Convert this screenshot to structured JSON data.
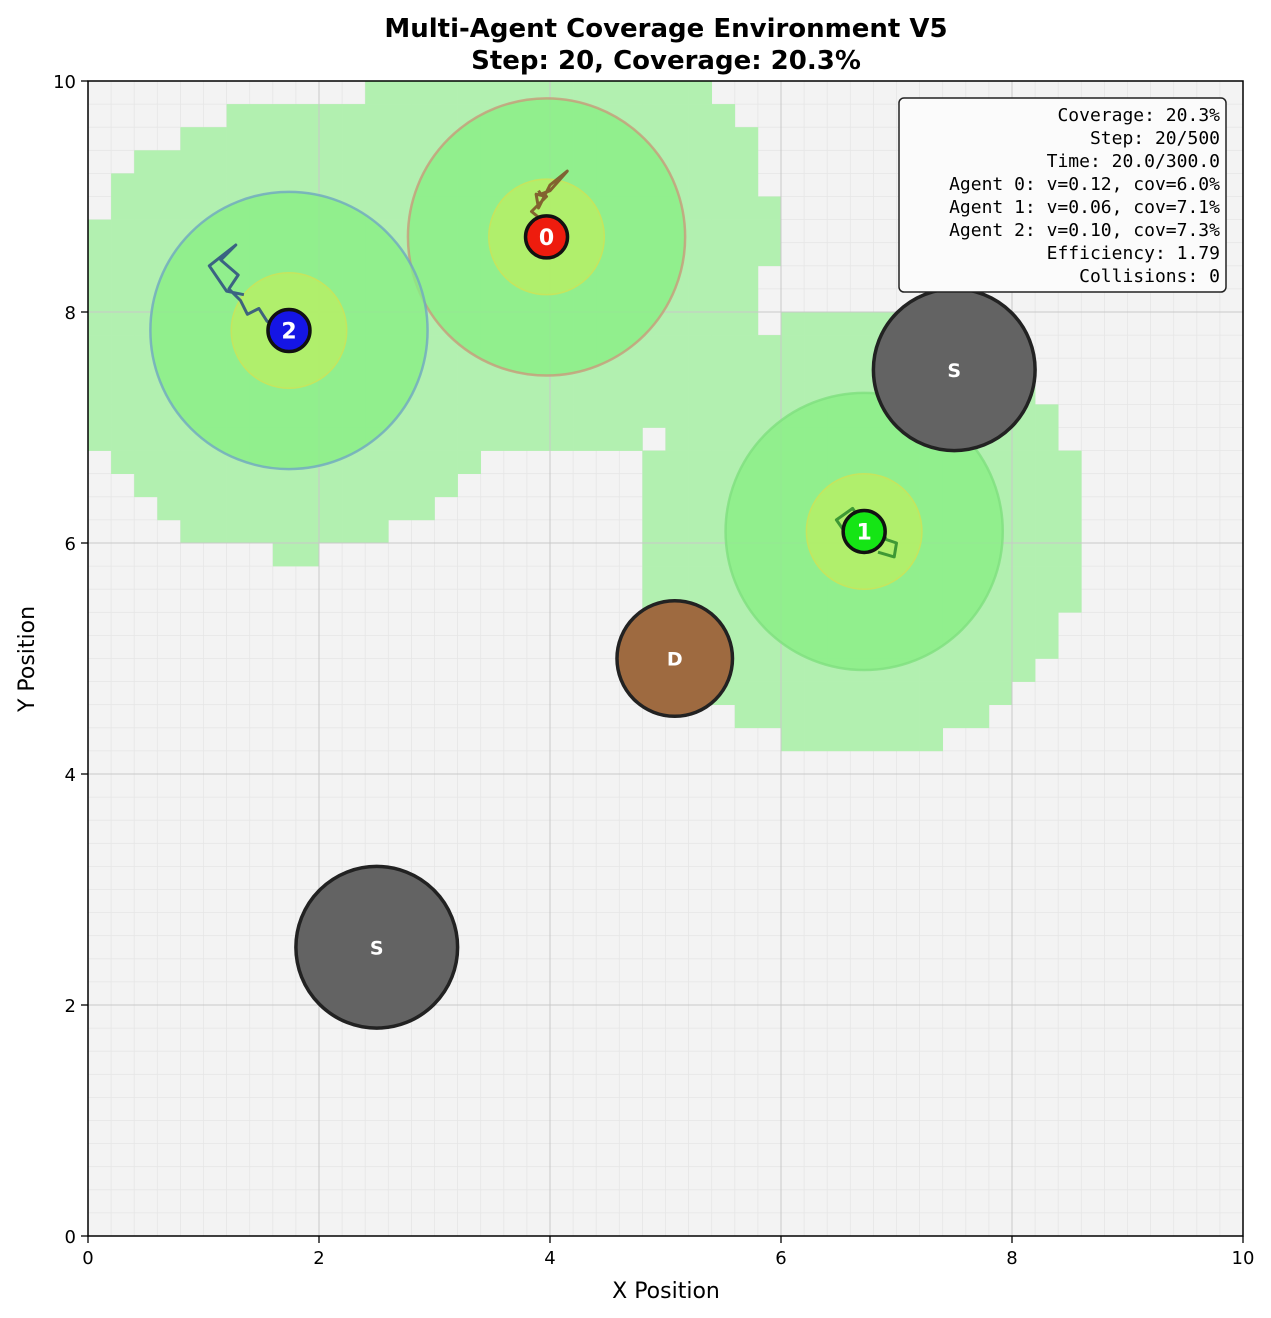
{
  "chart_data": {
    "type": "scatter",
    "title": "Multi-Agent Coverage Environment V5",
    "subtitle": "Step: 20, Coverage: 20.3%",
    "xlabel": "X Position",
    "ylabel": "Y Position",
    "xlim": [
      0,
      10
    ],
    "ylim": [
      0,
      10
    ],
    "xticks": [
      "0",
      "2",
      "4",
      "6",
      "8",
      "10"
    ],
    "yticks": [
      "0",
      "2",
      "4",
      "6",
      "8",
      "10"
    ],
    "grid": true,
    "fine_grid_cell": 0.2,
    "colors": {
      "background": "#f3f3f3",
      "covered_cell": "#b2f0b0",
      "sensing_disk": "#88ef84",
      "comm_core": "#b5ee66",
      "obstacle_static": "#636363",
      "obstacle_dynamic": "#9e6a40"
    },
    "agents": [
      {
        "id": "0",
        "x": 3.97,
        "y": 8.65,
        "color": "#ee1c0e",
        "sensing_radius": 1.2,
        "core_radius": 0.5,
        "ring_color": "#c89b7a",
        "trail_color": "#7a4a25",
        "trail": [
          [
            3.95,
            8.78
          ],
          [
            3.84,
            8.87
          ],
          [
            3.97,
            9.0
          ],
          [
            3.88,
            9.02
          ],
          [
            3.9,
            8.9
          ],
          [
            4.0,
            9.1
          ],
          [
            4.15,
            9.22
          ],
          [
            4.0,
            9.05
          ],
          [
            3.92,
            9.02
          ],
          [
            3.9,
            9.05
          ]
        ]
      },
      {
        "id": "1",
        "x": 6.72,
        "y": 6.1,
        "color": "#15e515",
        "sensing_radius": 1.2,
        "core_radius": 0.5,
        "ring_color": "#7fe07f",
        "trail_color": "#2a8a2a",
        "trail": [
          [
            6.72,
            6.1
          ],
          [
            6.55,
            6.1
          ],
          [
            6.48,
            6.2
          ],
          [
            6.62,
            6.3
          ],
          [
            6.7,
            6.18
          ],
          [
            6.86,
            6.15
          ],
          [
            6.91,
            6.03
          ],
          [
            7.0,
            6.0
          ],
          [
            6.98,
            5.88
          ],
          [
            6.84,
            5.92
          ]
        ]
      },
      {
        "id": "2",
        "x": 1.74,
        "y": 7.84,
        "color": "#1515e5",
        "sensing_radius": 1.2,
        "core_radius": 0.5,
        "ring_color": "#6fa7c2",
        "trail_color": "#2a4a80",
        "trail": [
          [
            1.74,
            7.84
          ],
          [
            1.55,
            7.92
          ],
          [
            1.48,
            8.03
          ],
          [
            1.38,
            7.98
          ],
          [
            1.32,
            8.1
          ],
          [
            1.22,
            8.2
          ],
          [
            1.3,
            8.32
          ],
          [
            1.15,
            8.45
          ],
          [
            1.28,
            8.58
          ],
          [
            1.05,
            8.4
          ],
          [
            1.2,
            8.18
          ],
          [
            1.35,
            8.15
          ]
        ]
      }
    ],
    "obstacles": [
      {
        "label": "S",
        "x": 7.5,
        "y": 7.5,
        "radius": 0.7,
        "type": "static"
      },
      {
        "label": "S",
        "x": 2.5,
        "y": 2.5,
        "radius": 0.7,
        "type": "static"
      },
      {
        "label": "D",
        "x": 5.08,
        "y": 5.0,
        "radius": 0.5,
        "type": "dynamic"
      }
    ],
    "covered_regions": [
      {
        "cx": 1.74,
        "cy": 7.84,
        "radius": 1.95
      },
      {
        "cx": 3.97,
        "cy": 8.65,
        "radius": 1.95
      },
      {
        "cx": 6.72,
        "cy": 6.1,
        "radius": 1.95
      }
    ],
    "info_box": [
      "Coverage: 20.3%",
      "Step: 20/500",
      "Time: 20.0/300.0",
      "Agent 0: v=0.12, cov=6.0%",
      "Agent 1: v=0.06, cov=7.1%",
      "Agent 2: v=0.10, cov=7.3%",
      "Efficiency: 1.79",
      "Collisions: 0"
    ]
  }
}
